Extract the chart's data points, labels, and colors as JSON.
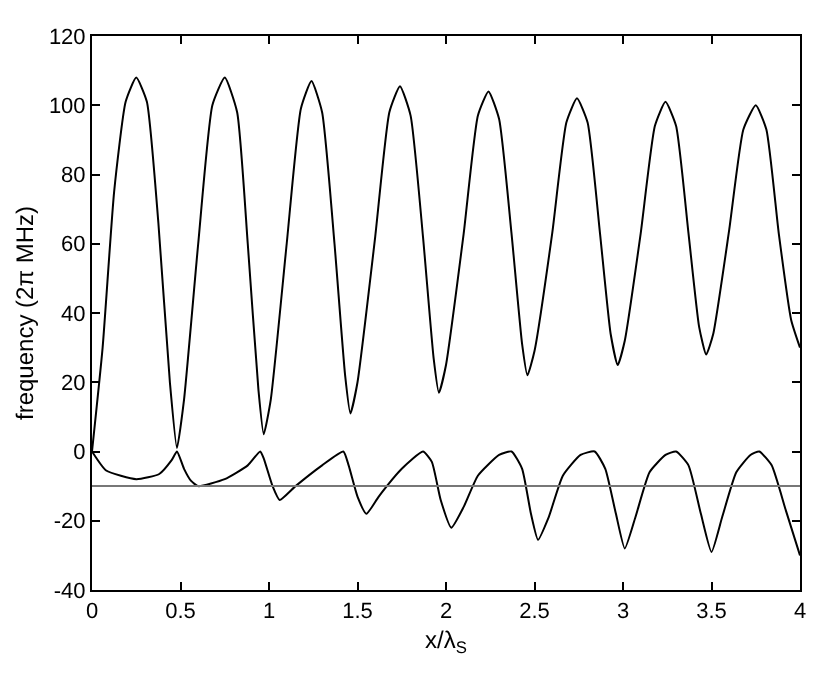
{
  "chart_data": {
    "type": "line",
    "xlabel": "x/λ$_{S}$",
    "ylabel": "frequency (2π MHz)",
    "xlim": [
      0,
      4
    ],
    "ylim": [
      -40,
      120
    ],
    "xticks": [
      0,
      0.5,
      1,
      1.5,
      2,
      2.5,
      3,
      3.5,
      4
    ],
    "yticks": [
      -40,
      -20,
      0,
      20,
      40,
      60,
      80,
      100,
      120
    ],
    "grid": false,
    "marker": "none",
    "line_style": "solid",
    "ref_lines": [
      {
        "axis": "y",
        "value": -10,
        "color": "#777777"
      }
    ],
    "series": [
      {
        "color": "#000000",
        "x": [
          0,
          0.06,
          0.125,
          0.19,
          0.25,
          0.31,
          0.375,
          0.44,
          0.48,
          0.52,
          0.6,
          0.68,
          0.75,
          0.82,
          0.88,
          0.94,
          0.97,
          1.01,
          1.1,
          1.18,
          1.24,
          1.3,
          1.37,
          1.43,
          1.46,
          1.5,
          1.6,
          1.68,
          1.74,
          1.8,
          1.87,
          1.93,
          1.96,
          2.0,
          2.1,
          2.18,
          2.24,
          2.3,
          2.37,
          2.43,
          2.46,
          2.5,
          2.6,
          2.68,
          2.74,
          2.8,
          2.87,
          2.93,
          2.97,
          3.01,
          3.1,
          3.18,
          3.24,
          3.3,
          3.37,
          3.43,
          3.47,
          3.51,
          3.6,
          3.68,
          3.75,
          3.81,
          3.88,
          3.95,
          4.0
        ],
        "values": [
          0,
          30,
          75,
          101,
          108,
          101,
          66,
          20,
          1,
          15,
          60,
          100,
          108,
          98,
          60,
          18,
          5,
          15,
          60,
          99,
          107,
          98,
          60,
          22,
          11,
          20,
          62,
          98,
          105.5,
          97,
          62,
          27,
          17,
          25,
          63,
          97,
          104,
          96,
          63,
          31,
          22,
          29,
          63,
          95,
          102,
          95,
          63,
          34,
          25,
          32,
          63,
          94,
          101,
          94,
          63,
          36,
          28,
          34,
          64,
          93,
          100,
          93,
          63,
          38,
          30
        ]
      },
      {
        "color": "#000000",
        "x": [
          0,
          0.08,
          0.25,
          0.38,
          0.45,
          0.48,
          0.52,
          0.56,
          0.6,
          0.75,
          0.88,
          0.95,
          0.97,
          1.02,
          1.06,
          1.15,
          1.3,
          1.42,
          1.45,
          1.5,
          1.55,
          1.62,
          1.75,
          1.87,
          1.92,
          1.97,
          2.03,
          2.1,
          2.18,
          2.3,
          2.37,
          2.43,
          2.48,
          2.52,
          2.58,
          2.66,
          2.76,
          2.84,
          2.9,
          2.96,
          3.01,
          3.07,
          3.15,
          3.24,
          3.3,
          3.37,
          3.44,
          3.5,
          3.56,
          3.64,
          3.72,
          3.77,
          3.84,
          3.92,
          4.0
        ],
        "values": [
          0,
          -5.5,
          -8,
          -6.5,
          -2.5,
          0,
          -5,
          -8.5,
          -10,
          -8,
          -4,
          0,
          -2,
          -10,
          -14,
          -10,
          -4,
          0,
          -4,
          -13,
          -18,
          -13,
          -5,
          0,
          -3,
          -14,
          -22,
          -16,
          -7,
          -1,
          0,
          -5,
          -18,
          -25.5,
          -19,
          -7,
          -1,
          0,
          -5,
          -18,
          -28,
          -19,
          -6,
          -1,
          0,
          -4,
          -18,
          -29,
          -19,
          -6,
          -1,
          0,
          -4,
          -17,
          -30
        ]
      }
    ]
  }
}
